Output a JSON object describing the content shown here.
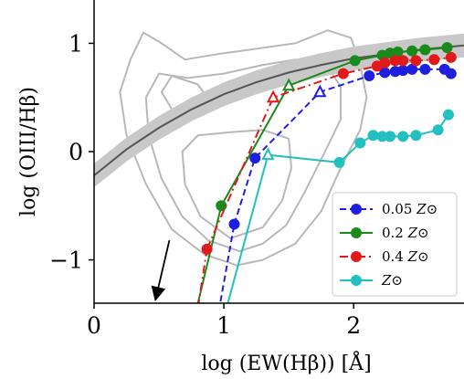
{
  "chart_data": {
    "type": "line",
    "xlabel": "log (EW(Hβ)) [Å]",
    "ylabel": "log (OIII/Hβ)",
    "xlim": [
      0,
      2.85
    ],
    "ylim": [
      -1.4,
      1.4
    ],
    "x_ticks": [
      {
        "v": 0,
        "label": "0"
      },
      {
        "v": 1,
        "label": "1"
      },
      {
        "v": 2,
        "label": "2"
      }
    ],
    "y_ticks": [
      {
        "v": 1,
        "label": "1"
      },
      {
        "v": 0,
        "label": "0"
      },
      {
        "v": -1,
        "label": "−1"
      }
    ],
    "grid": false,
    "legend_position": "lower-right",
    "series": [
      {
        "name": "0.05 Z⊙",
        "name_main": "0.05",
        "name_sym": "Z⊙",
        "color": "#1f1fe0",
        "line_style": "dashed",
        "x": [
          1.08,
          1.24,
          1.74,
          2.12,
          2.24,
          2.32,
          2.38,
          2.45,
          2.55,
          2.7,
          2.75
        ],
        "y": [
          -0.67,
          -0.06,
          0.55,
          0.7,
          0.73,
          0.74,
          0.75,
          0.76,
          0.76,
          0.76,
          0.72
        ],
        "open_markers": [
          false,
          false,
          true,
          false,
          false,
          false,
          false,
          false,
          false,
          false,
          false
        ],
        "extension": {
          "x": [
            0.92,
            1.08
          ],
          "y": [
            -1.75,
            -0.67
          ]
        }
      },
      {
        "name": "0.2 Z⊙",
        "name_main": "0.2",
        "name_sym": "Z⊙",
        "color": "#1a8a1a",
        "line_style": "solid",
        "x": [
          0.98,
          1.5,
          2.01,
          2.22,
          2.28,
          2.34,
          2.45,
          2.55,
          2.72
        ],
        "y": [
          -0.5,
          0.61,
          0.84,
          0.89,
          0.91,
          0.92,
          0.93,
          0.94,
          0.96
        ],
        "open_markers": [
          false,
          true,
          false,
          false,
          false,
          false,
          false,
          false,
          false
        ],
        "extension": {
          "x": [
            0.72,
            0.98
          ],
          "y": [
            -1.8,
            -0.5
          ]
        }
      },
      {
        "name": "0.4 Z⊙",
        "name_main": "0.4",
        "name_sym": "Z⊙",
        "color": "#e01a1a",
        "line_style": "dashdot",
        "x": [
          0.87,
          1.38,
          1.92,
          2.18,
          2.24,
          2.32,
          2.38,
          2.48,
          2.62,
          2.75
        ],
        "y": [
          -0.9,
          0.5,
          0.72,
          0.79,
          0.82,
          0.84,
          0.84,
          0.84,
          0.85,
          0.87
        ],
        "open_markers": [
          false,
          true,
          false,
          false,
          false,
          false,
          false,
          false,
          false,
          false
        ],
        "extension": {
          "x": [
            0.78,
            0.87
          ],
          "y": [
            -1.6,
            -0.9
          ]
        }
      },
      {
        "name": "Z⊙",
        "name_main": "",
        "name_sym": "Z⊙",
        "color": "#22c0c0",
        "line_style": "solid",
        "x": [
          1.34,
          1.89,
          2.05,
          2.15,
          2.22,
          2.28,
          2.38,
          2.48,
          2.65,
          2.73
        ],
        "y": [
          -0.03,
          -0.1,
          0.08,
          0.15,
          0.14,
          0.14,
          0.14,
          0.15,
          0.2,
          0.34
        ],
        "open_markers": [
          true,
          false,
          false,
          false,
          false,
          false,
          false,
          false,
          false,
          false
        ],
        "extension": {
          "x": [
            0.94,
            1.34
          ],
          "y": [
            -1.8,
            -0.03
          ]
        }
      }
    ],
    "reference_curve": {
      "color": "#555555",
      "band_color": "#c8c8c8",
      "band_half_width": 0.11,
      "x": [
        0.0,
        0.25,
        0.5,
        0.75,
        1.0,
        1.25,
        1.5,
        1.75,
        2.0,
        2.25,
        2.5,
        2.85
      ],
      "y": [
        -0.22,
        0.02,
        0.22,
        0.39,
        0.53,
        0.64,
        0.73,
        0.8,
        0.86,
        0.9,
        0.94,
        0.98
      ]
    },
    "arrow": {
      "x1": 0.58,
      "y1": -0.82,
      "x2": 0.47,
      "y2": -1.4,
      "color": "#000000"
    },
    "contours": {
      "color": "#b8b8b8",
      "outer": [
        [
          1.1,
          -1.05
        ],
        [
          0.85,
          -0.95
        ],
        [
          0.6,
          -0.72
        ],
        [
          0.4,
          -0.3
        ],
        [
          0.25,
          0.15
        ],
        [
          0.2,
          0.55
        ],
        [
          0.28,
          0.85
        ],
        [
          0.38,
          1.1
        ],
        [
          0.52,
          1.0
        ],
        [
          0.7,
          0.85
        ],
        [
          0.95,
          0.9
        ],
        [
          1.25,
          0.95
        ],
        [
          1.55,
          1.0
        ],
        [
          1.8,
          1.12
        ],
        [
          1.98,
          1.05
        ],
        [
          2.05,
          0.8
        ],
        [
          2.1,
          0.5
        ],
        [
          2.05,
          0.2
        ],
        [
          1.9,
          -0.15
        ],
        [
          1.75,
          -0.55
        ],
        [
          1.55,
          -0.85
        ],
        [
          1.3,
          -1.0
        ]
      ],
      "middle": [
        [
          1.12,
          -0.92
        ],
        [
          0.88,
          -0.82
        ],
        [
          0.68,
          -0.6
        ],
        [
          0.52,
          -0.25
        ],
        [
          0.42,
          0.15
        ],
        [
          0.4,
          0.5
        ],
        [
          0.5,
          0.72
        ],
        [
          0.72,
          0.68
        ],
        [
          1.0,
          0.72
        ],
        [
          1.3,
          0.8
        ],
        [
          1.55,
          0.85
        ],
        [
          1.78,
          0.82
        ],
        [
          1.9,
          0.6
        ],
        [
          1.9,
          0.3
        ],
        [
          1.78,
          0.0
        ],
        [
          1.62,
          -0.38
        ],
        [
          1.48,
          -0.68
        ],
        [
          1.3,
          -0.85
        ]
      ],
      "inner": [
        [
          1.05,
          -0.8
        ],
        [
          0.82,
          -0.6
        ],
        [
          0.7,
          -0.3
        ],
        [
          0.68,
          0.0
        ],
        [
          0.8,
          0.15
        ],
        [
          1.05,
          0.18
        ],
        [
          1.3,
          0.2
        ],
        [
          1.5,
          0.12
        ],
        [
          1.52,
          -0.15
        ],
        [
          1.45,
          -0.45
        ],
        [
          1.3,
          -0.7
        ]
      ],
      "inner2": [
        [
          0.9,
          0.45
        ],
        [
          0.62,
          0.35
        ],
        [
          0.52,
          0.55
        ],
        [
          0.6,
          0.7
        ],
        [
          0.8,
          0.62
        ]
      ]
    }
  }
}
